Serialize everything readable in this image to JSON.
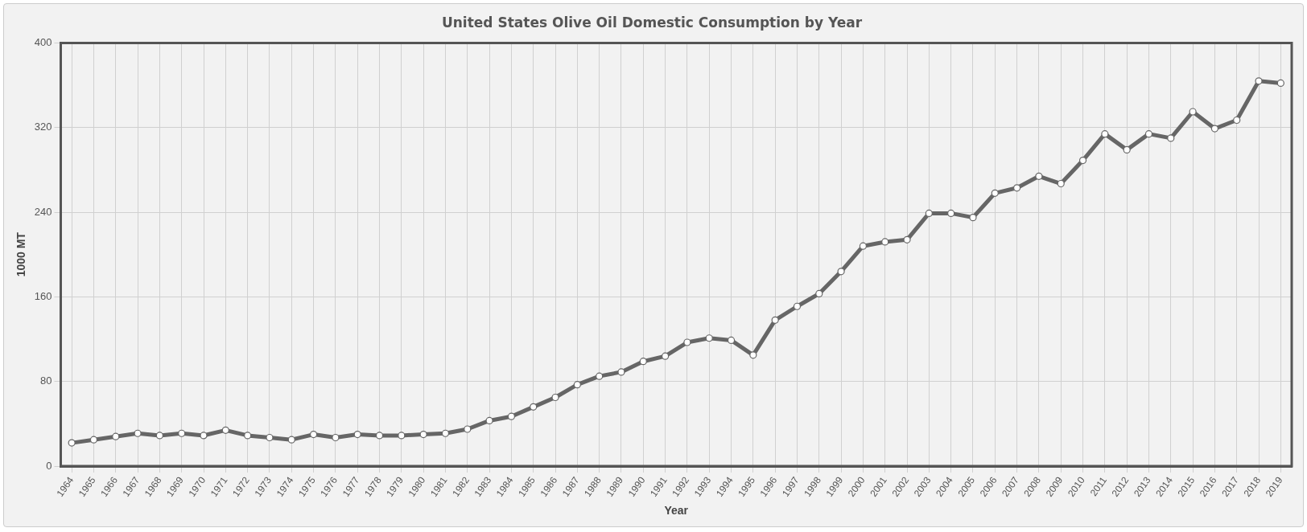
{
  "chart_data": {
    "type": "line",
    "title": "United States Olive Oil Domestic Consumption by Year",
    "xlabel": "Year",
    "ylabel": "1000 MT",
    "categories": [
      "1964",
      "1965",
      "1966",
      "1967",
      "1968",
      "1969",
      "1970",
      "1971",
      "1972",
      "1973",
      "1974",
      "1975",
      "1976",
      "1977",
      "1978",
      "1979",
      "1980",
      "1981",
      "1982",
      "1983",
      "1984",
      "1985",
      "1986",
      "1987",
      "1988",
      "1989",
      "1990",
      "1991",
      "1992",
      "1993",
      "1994",
      "1995",
      "1996",
      "1997",
      "1998",
      "1999",
      "2000",
      "2001",
      "2002",
      "2003",
      "2004",
      "2005",
      "2006",
      "2007",
      "2008",
      "2009",
      "2010",
      "2011",
      "2012",
      "2013",
      "2014",
      "2015",
      "2016",
      "2017",
      "2018",
      "2019"
    ],
    "series": [
      {
        "color": "#666666",
        "values": [
          22,
          25,
          28,
          31,
          29,
          31,
          29,
          34,
          29,
          27,
          25,
          30,
          27,
          30,
          29,
          29,
          30,
          31,
          35,
          43,
          47,
          56,
          65,
          77,
          85,
          89,
          99,
          104,
          117,
          121,
          119,
          105,
          138,
          151,
          163,
          184,
          208,
          212,
          214,
          239,
          239,
          235,
          258,
          263,
          274,
          267,
          289,
          314,
          299,
          314,
          310,
          335,
          319,
          327,
          364,
          362
        ]
      }
    ],
    "ylim": [
      0,
      400
    ],
    "yticks": [
      0,
      80,
      160,
      240,
      320,
      400
    ],
    "grid": true,
    "legend": false,
    "marker": "circle",
    "line_style": "solid"
  }
}
